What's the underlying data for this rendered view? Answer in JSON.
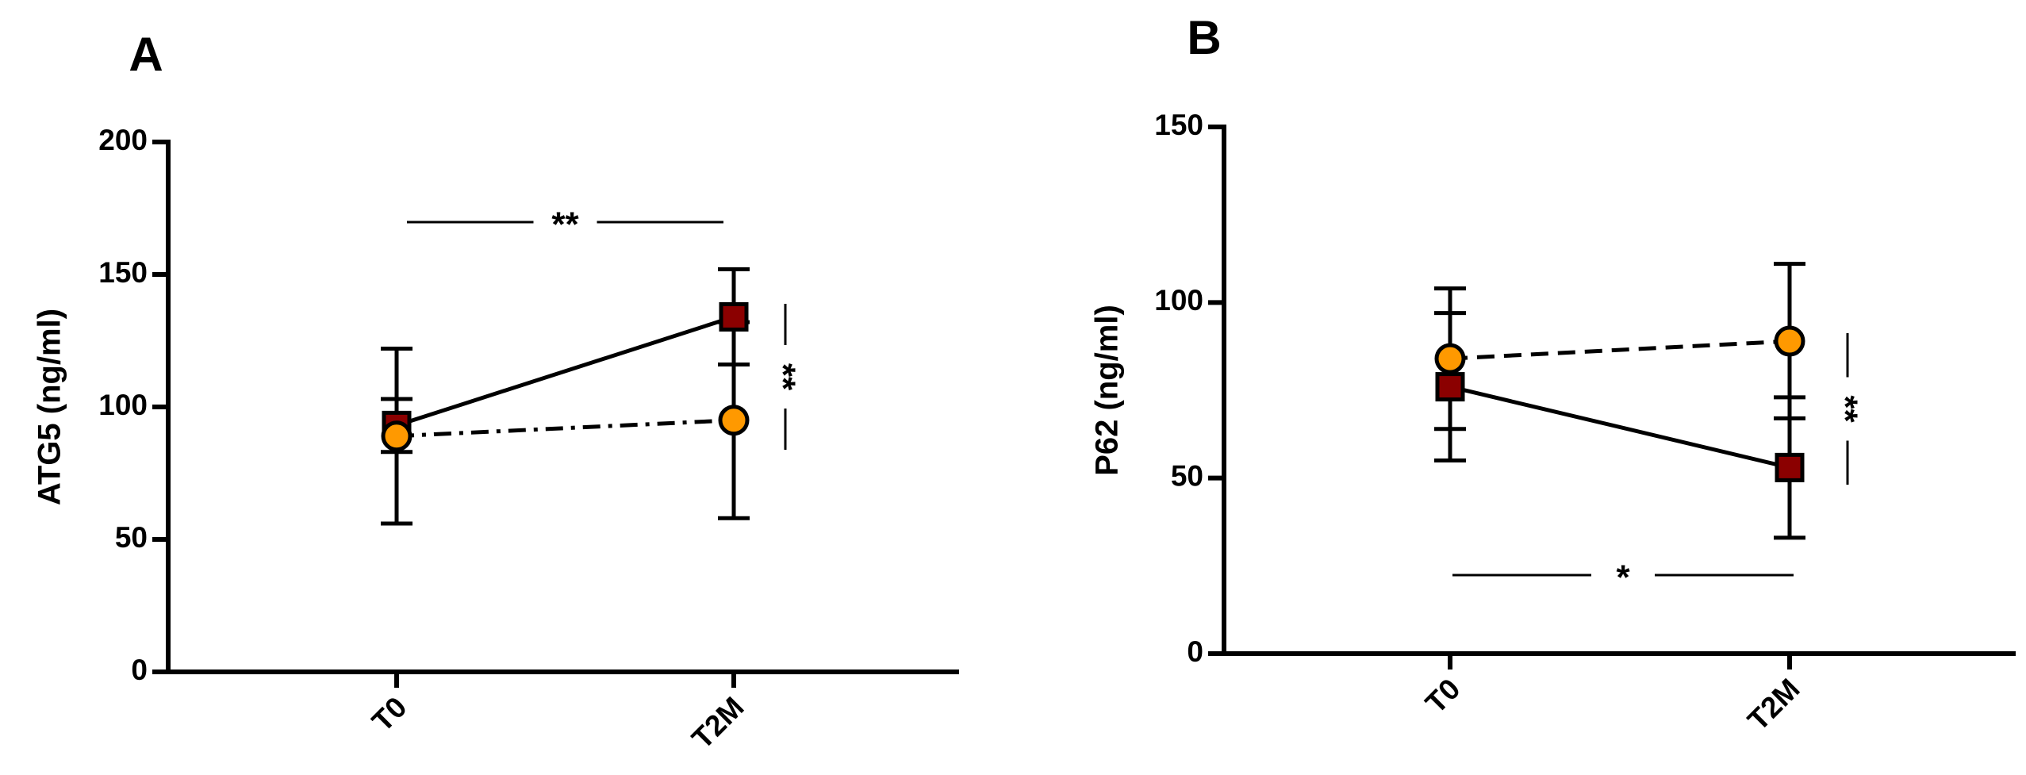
{
  "chart_data": [
    {
      "type": "line",
      "label": "A",
      "y_label": "ATG5 (ng/ml)",
      "categories": [
        "T0",
        "T2M"
      ],
      "ylim": [
        0,
        200
      ],
      "yticks": [
        0,
        50,
        100,
        150,
        200
      ],
      "series": [
        {
          "color": "#8b0000",
          "marker": "square",
          "line_style": "solid",
          "values": [
            93,
            134
          ],
          "errors": [
            10,
            18
          ]
        },
        {
          "color": "#ff9900",
          "marker": "circle",
          "line_style": "dashdot",
          "values": [
            89,
            95
          ],
          "errors": [
            33,
            37
          ]
        }
      ],
      "annotations": [
        "**",
        "**"
      ]
    },
    {
      "type": "line",
      "label": "B",
      "y_label": "P62 (ng/ml)",
      "categories": [
        "T0",
        "T2M"
      ],
      "ylim": [
        0,
        150
      ],
      "yticks": [
        0,
        50,
        100,
        150
      ],
      "series": [
        {
          "color": "#8b0000",
          "marker": "square",
          "line_style": "solid",
          "values": [
            76,
            53
          ],
          "errors": [
            21,
            20
          ]
        },
        {
          "color": "#ff9900",
          "marker": "circle",
          "line_style": "dashed",
          "values": [
            84,
            89
          ],
          "errors": [
            20,
            22
          ]
        }
      ],
      "annotations": [
        "*",
        "**"
      ]
    }
  ]
}
